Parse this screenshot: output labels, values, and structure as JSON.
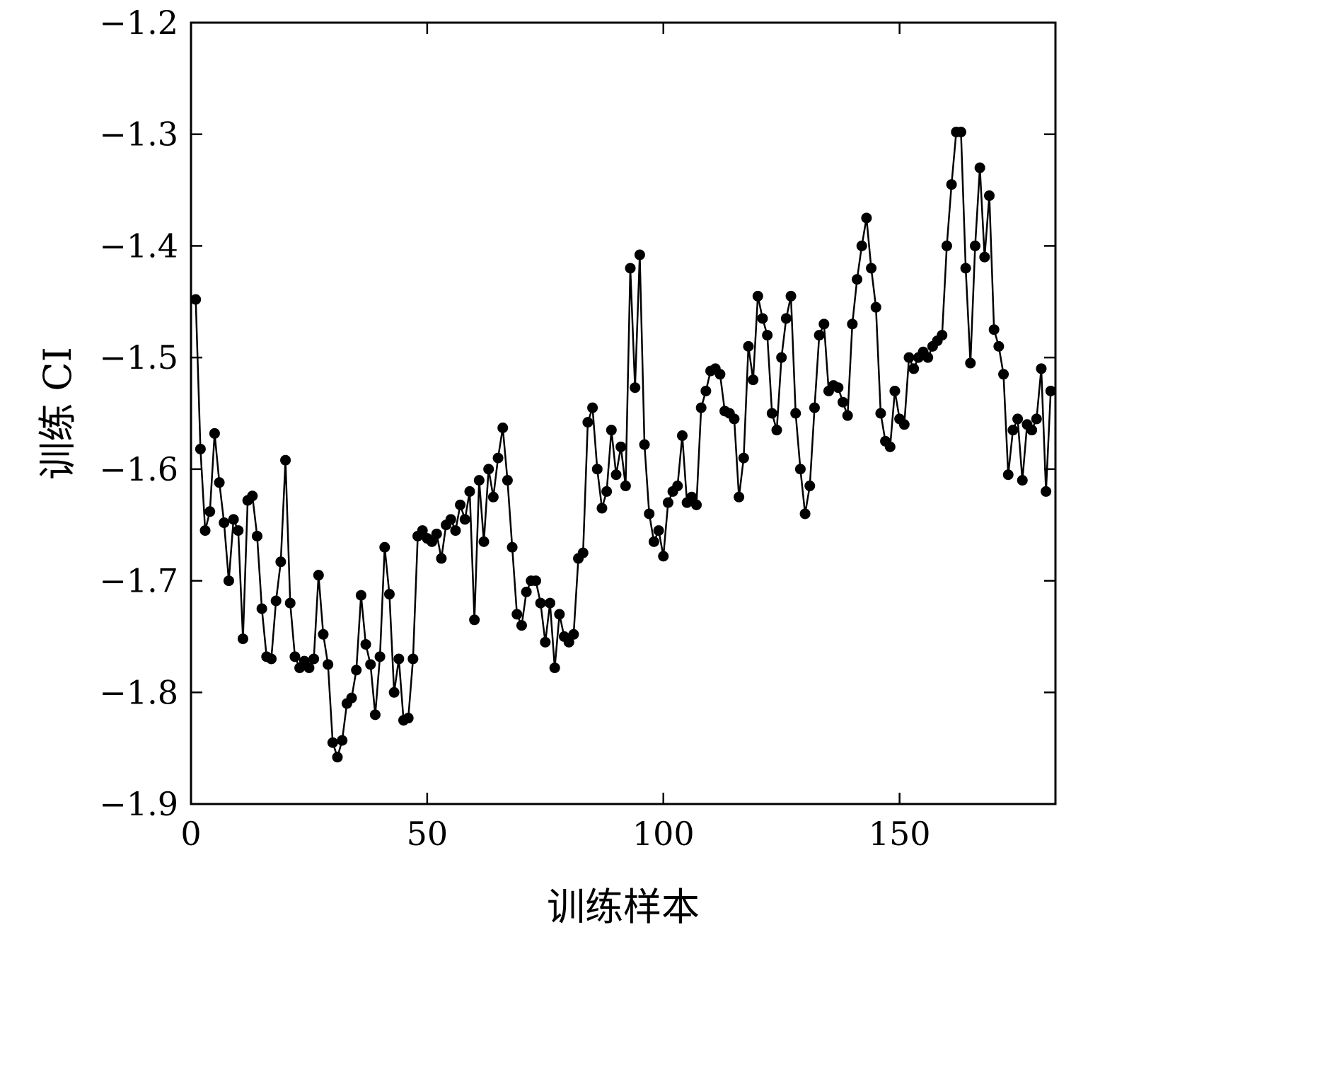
{
  "figure": {
    "background": "#ffffff"
  },
  "chart_data": {
    "type": "line",
    "title": "",
    "xlabel": "训练样本",
    "ylabel": "训练 CI",
    "xlim": [
      0,
      183
    ],
    "ylim": [
      -1.9,
      -1.2
    ],
    "grid": false,
    "legend": null,
    "line_color": "#000000",
    "marker": "circle",
    "marker_color": "#000000",
    "x_ticks": {
      "values": [
        0,
        50,
        100,
        150
      ],
      "labels": [
        "0",
        "50",
        "100",
        "150"
      ]
    },
    "y_ticks": {
      "values": [
        -1.9,
        -1.8,
        -1.7,
        -1.6,
        -1.5,
        -1.4,
        -1.3,
        -1.2
      ],
      "labels": [
        "−1.9",
        "−1.8",
        "−1.7",
        "−1.6",
        "−1.5",
        "−1.4",
        "−1.3",
        "−1.2"
      ]
    },
    "x_start": 1,
    "x_step": 1,
    "values": [
      -1.448,
      -1.582,
      -1.655,
      -1.638,
      -1.568,
      -1.612,
      -1.648,
      -1.7,
      -1.645,
      -1.655,
      -1.752,
      -1.628,
      -1.624,
      -1.66,
      -1.725,
      -1.768,
      -1.77,
      -1.718,
      -1.683,
      -1.592,
      -1.72,
      -1.768,
      -1.778,
      -1.772,
      -1.778,
      -1.77,
      -1.695,
      -1.748,
      -1.775,
      -1.845,
      -1.858,
      -1.843,
      -1.81,
      -1.805,
      -1.78,
      -1.713,
      -1.757,
      -1.775,
      -1.82,
      -1.768,
      -1.67,
      -1.712,
      -1.8,
      -1.77,
      -1.825,
      -1.823,
      -1.77,
      -1.66,
      -1.655,
      -1.662,
      -1.665,
      -1.658,
      -1.68,
      -1.65,
      -1.645,
      -1.655,
      -1.632,
      -1.645,
      -1.62,
      -1.735,
      -1.61,
      -1.665,
      -1.6,
      -1.625,
      -1.59,
      -1.563,
      -1.61,
      -1.67,
      -1.73,
      -1.74,
      -1.71,
      -1.7,
      -1.7,
      -1.72,
      -1.755,
      -1.72,
      -1.778,
      -1.73,
      -1.75,
      -1.755,
      -1.748,
      -1.68,
      -1.675,
      -1.558,
      -1.545,
      -1.6,
      -1.635,
      -1.62,
      -1.565,
      -1.605,
      -1.58,
      -1.615,
      -1.42,
      -1.527,
      -1.408,
      -1.578,
      -1.64,
      -1.665,
      -1.655,
      -1.678,
      -1.63,
      -1.62,
      -1.615,
      -1.57,
      -1.63,
      -1.625,
      -1.632,
      -1.545,
      -1.53,
      -1.512,
      -1.51,
      -1.515,
      -1.548,
      -1.55,
      -1.555,
      -1.625,
      -1.59,
      -1.49,
      -1.52,
      -1.445,
      -1.465,
      -1.48,
      -1.55,
      -1.565,
      -1.5,
      -1.465,
      -1.445,
      -1.55,
      -1.6,
      -1.64,
      -1.615,
      -1.545,
      -1.48,
      -1.47,
      -1.53,
      -1.525,
      -1.527,
      -1.54,
      -1.552,
      -1.47,
      -1.43,
      -1.4,
      -1.375,
      -1.42,
      -1.455,
      -1.55,
      -1.575,
      -1.58,
      -1.53,
      -1.555,
      -1.56,
      -1.5,
      -1.51,
      -1.5,
      -1.495,
      -1.5,
      -1.49,
      -1.485,
      -1.48,
      -1.4,
      -1.345,
      -1.298,
      -1.298,
      -1.42,
      -1.505,
      -1.4,
      -1.33,
      -1.41,
      -1.355,
      -1.475,
      -1.49,
      -1.515,
      -1.605,
      -1.565,
      -1.555,
      -1.61,
      -1.56,
      -1.565,
      -1.555,
      -1.51,
      -1.62,
      -1.53
    ]
  }
}
